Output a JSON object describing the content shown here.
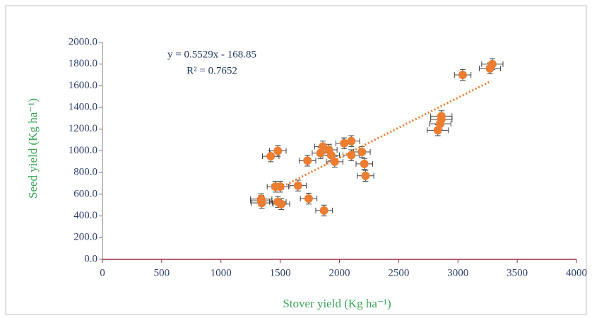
{
  "chart_data": {
    "type": "scatter",
    "xlabel": "Stover yield (Kg ha⁻¹)",
    "ylabel": "Seed yield (Kg ha⁻¹)",
    "xlim": [
      0,
      4000
    ],
    "xticks": [
      0,
      500,
      1000,
      1500,
      2000,
      2500,
      3000,
      3500,
      4000
    ],
    "ylim": [
      0,
      2000
    ],
    "yticks": [
      {
        "value": 0,
        "label": "0.0"
      },
      {
        "value": 200,
        "label": "200.0"
      },
      {
        "value": 400,
        "label": "400.0"
      },
      {
        "value": 600,
        "label": "600.0"
      },
      {
        "value": 800,
        "label": "800.0"
      },
      {
        "value": 1000,
        "label": "1000.0"
      },
      {
        "value": 1200,
        "label": "1200.0"
      },
      {
        "value": 1400,
        "label": "1400.0"
      },
      {
        "value": 1600,
        "label": "1600.0"
      },
      {
        "value": 1800,
        "label": "1800.0"
      },
      {
        "value": 2000,
        "label": "2000.0"
      }
    ],
    "color": "#ed7d31",
    "x": [
      1340,
      1340,
      1345,
      1420,
      1480,
      1460,
      1500,
      1480,
      1510,
      1650,
      1740,
      1870,
      1730,
      1840,
      1860,
      1910,
      1930,
      1960,
      2040,
      2100,
      2100,
      2190,
      2210,
      2220,
      2830,
      2850,
      2860,
      2860,
      3040,
      3270,
      3290
    ],
    "y": [
      540,
      555,
      520,
      950,
      1000,
      670,
      670,
      530,
      510,
      680,
      560,
      450,
      910,
      980,
      1040,
      1010,
      960,
      900,
      1070,
      1090,
      960,
      990,
      880,
      770,
      1190,
      1250,
      1290,
      1320,
      1700,
      1760,
      1800
    ],
    "x_err": [
      90,
      90,
      90,
      70,
      70,
      70,
      70,
      70,
      70,
      70,
      70,
      70,
      70,
      70,
      70,
      70,
      70,
      70,
      70,
      70,
      70,
      70,
      70,
      70,
      90,
      90,
      90,
      90,
      70,
      90,
      90
    ],
    "y_err": [
      50,
      50,
      50,
      50,
      50,
      50,
      50,
      50,
      50,
      50,
      50,
      50,
      50,
      50,
      50,
      50,
      50,
      50,
      50,
      50,
      50,
      50,
      50,
      50,
      50,
      50,
      50,
      50,
      50,
      50,
      50
    ],
    "trendline": {
      "equation": "y = 0.5529x - 168.85",
      "r_squared": "R² = 0.7652",
      "slope": 0.5529,
      "intercept": -168.85,
      "x_range": [
        1550,
        3280
      ]
    }
  }
}
